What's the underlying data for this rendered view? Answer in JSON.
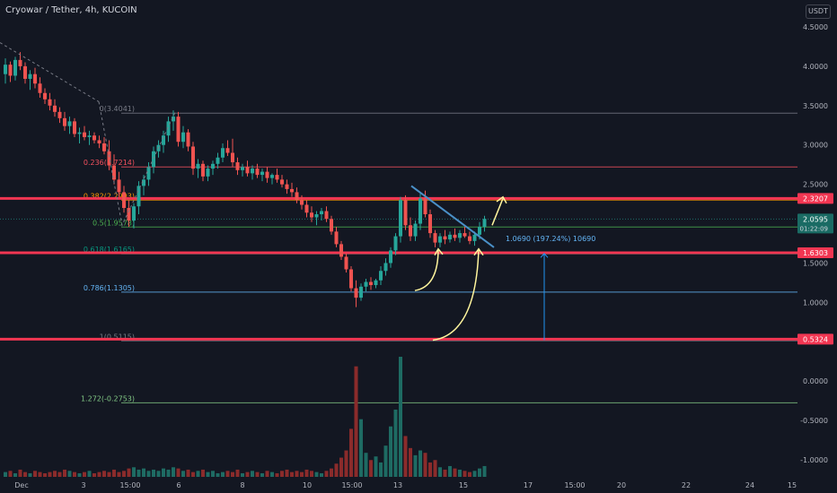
{
  "header": {
    "title": "Cryowar / Tether, 4h, KUCOIN",
    "currency_button": "USDT"
  },
  "colors": {
    "background": "#131722",
    "up": "#26a69a",
    "down": "#ef5350",
    "vol_up": "#1e6b63",
    "vol_down": "#8b2b2b",
    "axis_text": "#b2b5be",
    "support": "#f23652",
    "price_tag": "#1a6b64"
  },
  "chart_data": {
    "type": "candlestick",
    "title": "Cryowar / Tether, 4h, KUCOIN",
    "x_tick_labels": [
      "Dec",
      "3",
      "15:00",
      "6",
      "8",
      "10",
      "15:00",
      "13",
      "15",
      "17",
      "15:00",
      "20",
      "22",
      "24",
      "15"
    ],
    "y_tick_labels": [
      "4.5000",
      "4.0000",
      "3.5000",
      "3.0000",
      "2.5000",
      "1.5000",
      "1.0000",
      "0.0000",
      "-0.5000",
      "-1.0000"
    ],
    "y_ticks": [
      4.5,
      4.0,
      3.5,
      3.0,
      2.5,
      1.5,
      1.0,
      0.0,
      -0.5,
      -1.0
    ],
    "ylim": [
      -1.4,
      4.9
    ],
    "grid": false,
    "price_markers": [
      {
        "value": 2.3207,
        "label": "2.3207",
        "kind": "level"
      },
      {
        "value": 2.0595,
        "label": "2.0595",
        "sublabel": "01:22:09",
        "kind": "current"
      },
      {
        "value": 1.6303,
        "label": "1.6303",
        "kind": "level"
      },
      {
        "value": 0.5324,
        "label": "0.5324",
        "kind": "level"
      }
    ],
    "fib_levels": [
      {
        "value": 3.4041,
        "label": "0(3.4041)",
        "color": "#787b86"
      },
      {
        "value": 2.7214,
        "label": "0.236(2.7214)",
        "color": "#f7525f"
      },
      {
        "value": 2.2993,
        "label": "0.382(2.2993)",
        "color": "#ff9800"
      },
      {
        "value": 1.9578,
        "label": "0.5(1.9578)",
        "color": "#4caf50"
      },
      {
        "value": 1.6165,
        "label": "0.618(1.6165)",
        "color": "#089981"
      },
      {
        "value": 1.1305,
        "label": "0.786(1.1305)",
        "color": "#64b5f6"
      },
      {
        "value": 0.5115,
        "label": "1(0.5115)",
        "color": "#787b86"
      },
      {
        "value": -0.2753,
        "label": "1.272(-0.2753)",
        "color": "#81c784"
      }
    ],
    "measure_label": "1.0690 (197.24%) 10690",
    "candles": [
      [
        3.9,
        4.1,
        3.78,
        4.02
      ],
      [
        4.02,
        4.06,
        3.8,
        3.88
      ],
      [
        3.88,
        4.12,
        3.82,
        4.08
      ],
      [
        4.08,
        4.18,
        3.95,
        4.0
      ],
      [
        4.0,
        4.05,
        3.78,
        3.84
      ],
      [
        3.84,
        3.95,
        3.7,
        3.9
      ],
      [
        3.9,
        3.98,
        3.72,
        3.78
      ],
      [
        3.78,
        3.86,
        3.6,
        3.66
      ],
      [
        3.66,
        3.72,
        3.52,
        3.58
      ],
      [
        3.58,
        3.66,
        3.44,
        3.5
      ],
      [
        3.5,
        3.58,
        3.36,
        3.42
      ],
      [
        3.42,
        3.48,
        3.28,
        3.34
      ],
      [
        3.34,
        3.42,
        3.18,
        3.24
      ],
      [
        3.24,
        3.36,
        3.14,
        3.3
      ],
      [
        3.3,
        3.34,
        3.1,
        3.14
      ],
      [
        3.14,
        3.22,
        3.02,
        3.16
      ],
      [
        3.16,
        3.24,
        3.06,
        3.1
      ],
      [
        3.1,
        3.18,
        3.0,
        3.12
      ],
      [
        3.12,
        3.16,
        3.02,
        3.06
      ],
      [
        3.06,
        3.12,
        2.96,
        3.02
      ],
      [
        3.02,
        3.1,
        2.88,
        2.92
      ],
      [
        2.92,
        3.06,
        2.68,
        2.74
      ],
      [
        2.74,
        2.88,
        2.5,
        2.56
      ],
      [
        2.56,
        2.66,
        2.34,
        2.4
      ],
      [
        2.4,
        2.48,
        2.14,
        2.2
      ],
      [
        2.2,
        2.3,
        1.96,
        2.04
      ],
      [
        2.04,
        2.26,
        1.94,
        2.22
      ],
      [
        2.22,
        2.54,
        2.12,
        2.48
      ],
      [
        2.48,
        2.62,
        2.36,
        2.56
      ],
      [
        2.56,
        2.78,
        2.48,
        2.72
      ],
      [
        2.72,
        2.98,
        2.64,
        2.92
      ],
      [
        2.92,
        3.06,
        2.84,
        3.0
      ],
      [
        3.0,
        3.18,
        2.9,
        3.12
      ],
      [
        3.12,
        3.36,
        3.04,
        3.3
      ],
      [
        3.3,
        3.44,
        3.18,
        3.36
      ],
      [
        3.36,
        3.42,
        2.98,
        3.04
      ],
      [
        3.04,
        3.24,
        2.96,
        3.16
      ],
      [
        3.16,
        3.2,
        2.92,
        2.98
      ],
      [
        2.98,
        3.04,
        2.62,
        2.7
      ],
      [
        2.7,
        2.82,
        2.58,
        2.76
      ],
      [
        2.76,
        2.8,
        2.54,
        2.6
      ],
      [
        2.6,
        2.74,
        2.54,
        2.7
      ],
      [
        2.7,
        2.8,
        2.62,
        2.76
      ],
      [
        2.76,
        2.9,
        2.7,
        2.84
      ],
      [
        2.84,
        3.02,
        2.78,
        2.96
      ],
      [
        2.96,
        3.06,
        2.86,
        2.9
      ],
      [
        2.9,
        3.08,
        2.72,
        2.78
      ],
      [
        2.78,
        2.84,
        2.62,
        2.68
      ],
      [
        2.68,
        2.76,
        2.6,
        2.72
      ],
      [
        2.72,
        2.8,
        2.6,
        2.64
      ],
      [
        2.64,
        2.74,
        2.56,
        2.7
      ],
      [
        2.7,
        2.76,
        2.58,
        2.62
      ],
      [
        2.62,
        2.7,
        2.54,
        2.66
      ],
      [
        2.66,
        2.72,
        2.52,
        2.58
      ],
      [
        2.58,
        2.64,
        2.5,
        2.62
      ],
      [
        2.62,
        2.7,
        2.52,
        2.56
      ],
      [
        2.56,
        2.62,
        2.46,
        2.5
      ],
      [
        2.5,
        2.56,
        2.38,
        2.44
      ],
      [
        2.44,
        2.52,
        2.34,
        2.4
      ],
      [
        2.4,
        2.46,
        2.26,
        2.3
      ],
      [
        2.3,
        2.36,
        2.18,
        2.24
      ],
      [
        2.24,
        2.3,
        2.08,
        2.14
      ],
      [
        2.14,
        2.22,
        2.02,
        2.08
      ],
      [
        2.08,
        2.16,
        1.98,
        2.12
      ],
      [
        2.12,
        2.2,
        2.04,
        2.16
      ],
      [
        2.16,
        2.22,
        2.02,
        2.06
      ],
      [
        2.06,
        2.1,
        1.86,
        1.9
      ],
      [
        1.9,
        1.96,
        1.7,
        1.74
      ],
      [
        1.74,
        1.78,
        1.54,
        1.58
      ],
      [
        1.58,
        1.62,
        1.38,
        1.42
      ],
      [
        1.42,
        1.46,
        1.14,
        1.18
      ],
      [
        1.18,
        1.28,
        0.94,
        1.06
      ],
      [
        1.06,
        1.24,
        1.02,
        1.2
      ],
      [
        1.2,
        1.3,
        1.14,
        1.26
      ],
      [
        1.26,
        1.32,
        1.16,
        1.22
      ],
      [
        1.22,
        1.3,
        1.18,
        1.28
      ],
      [
        1.28,
        1.46,
        1.22,
        1.4
      ],
      [
        1.4,
        1.56,
        1.34,
        1.5
      ],
      [
        1.5,
        1.7,
        1.44,
        1.66
      ],
      [
        1.66,
        1.88,
        1.6,
        1.84
      ],
      [
        1.84,
        2.34,
        1.76,
        2.3
      ],
      [
        2.3,
        2.36,
        1.92,
        1.98
      ],
      [
        1.98,
        2.08,
        1.78,
        1.84
      ],
      [
        1.84,
        2.04,
        1.78,
        2.0
      ],
      [
        2.0,
        2.38,
        1.92,
        2.32
      ],
      [
        2.32,
        2.42,
        2.08,
        2.12
      ],
      [
        2.12,
        2.18,
        1.82,
        1.88
      ],
      [
        1.88,
        1.92,
        1.7,
        1.76
      ],
      [
        1.76,
        1.88,
        1.7,
        1.84
      ],
      [
        1.84,
        1.92,
        1.74,
        1.8
      ],
      [
        1.8,
        1.9,
        1.76,
        1.86
      ],
      [
        1.86,
        1.94,
        1.78,
        1.82
      ],
      [
        1.82,
        1.92,
        1.76,
        1.88
      ],
      [
        1.88,
        1.96,
        1.82,
        1.84
      ],
      [
        1.84,
        1.9,
        1.74,
        1.78
      ],
      [
        1.78,
        1.9,
        1.72,
        1.86
      ],
      [
        1.86,
        2.02,
        1.8,
        1.96
      ],
      [
        1.96,
        2.1,
        1.9,
        2.06
      ]
    ],
    "volumes": [
      0.04,
      0.05,
      0.03,
      0.06,
      0.04,
      0.03,
      0.05,
      0.04,
      0.03,
      0.04,
      0.05,
      0.04,
      0.06,
      0.05,
      0.04,
      0.03,
      0.04,
      0.05,
      0.03,
      0.04,
      0.05,
      0.04,
      0.06,
      0.04,
      0.05,
      0.07,
      0.08,
      0.06,
      0.07,
      0.05,
      0.06,
      0.05,
      0.07,
      0.06,
      0.08,
      0.07,
      0.05,
      0.06,
      0.04,
      0.05,
      0.06,
      0.04,
      0.05,
      0.03,
      0.04,
      0.05,
      0.04,
      0.06,
      0.03,
      0.04,
      0.05,
      0.04,
      0.03,
      0.05,
      0.04,
      0.03,
      0.05,
      0.06,
      0.04,
      0.05,
      0.04,
      0.06,
      0.05,
      0.04,
      0.03,
      0.05,
      0.07,
      0.11,
      0.16,
      0.22,
      0.4,
      0.92,
      0.48,
      0.2,
      0.14,
      0.17,
      0.12,
      0.26,
      0.42,
      0.56,
      1.0,
      0.34,
      0.24,
      0.18,
      0.22,
      0.2,
      0.12,
      0.14,
      0.08,
      0.06,
      0.09,
      0.07,
      0.06,
      0.05,
      0.04,
      0.05,
      0.07,
      0.09
    ]
  }
}
